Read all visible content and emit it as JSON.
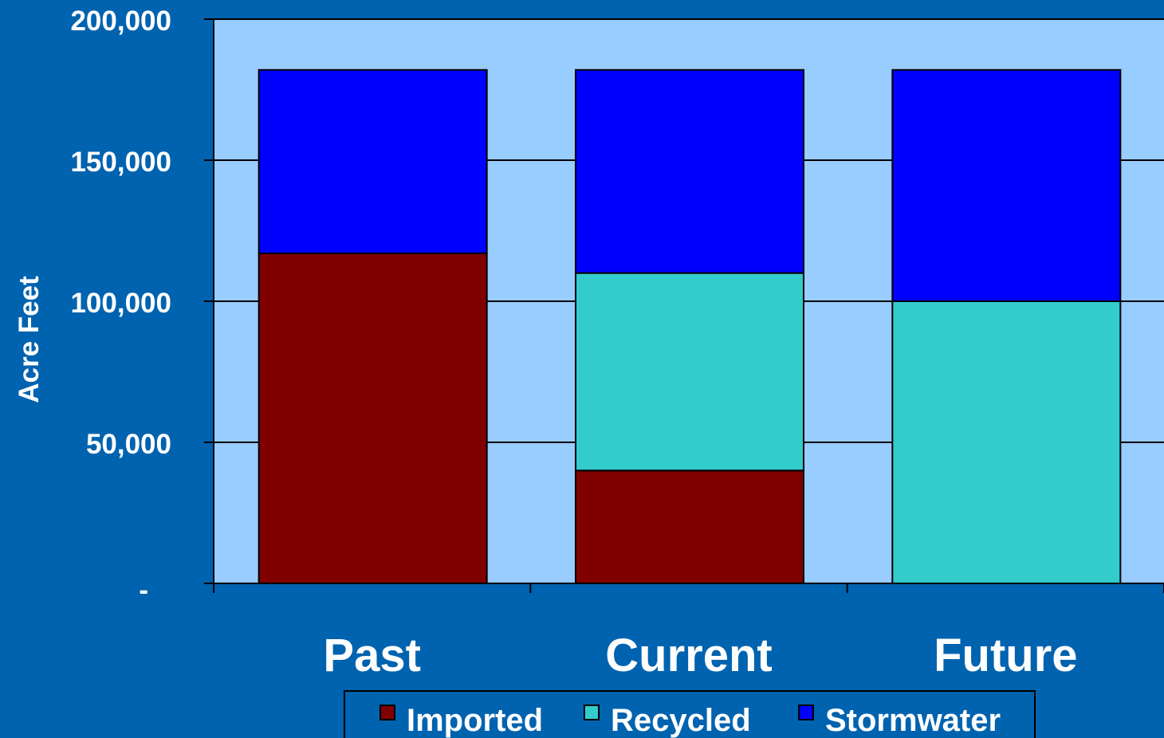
{
  "chart_data": {
    "type": "bar",
    "stacked": true,
    "categories": [
      "Past",
      "Current",
      "Future"
    ],
    "series": [
      {
        "name": "Imported",
        "values": [
          117000,
          40000,
          0
        ]
      },
      {
        "name": "Recycled",
        "values": [
          0,
          70000,
          100000
        ]
      },
      {
        "name": "Stormwater",
        "values": [
          65000,
          72000,
          82000
        ]
      }
    ],
    "ylabel": "Acre Feet",
    "xlabel": "",
    "ylim": [
      0,
      200000
    ],
    "yticks": [
      0,
      50000,
      100000,
      150000,
      200000
    ],
    "ytick_labels": [
      "-",
      "50,000",
      "100,000",
      "150,000",
      "200,000"
    ],
    "grid": true,
    "legend_position": "bottom"
  },
  "colors": {
    "Imported": "#800000",
    "Recycled": "#33CCCC",
    "Stormwater": "#0000FF",
    "plot_area": "#99CCFF",
    "background": "#0063AF"
  }
}
